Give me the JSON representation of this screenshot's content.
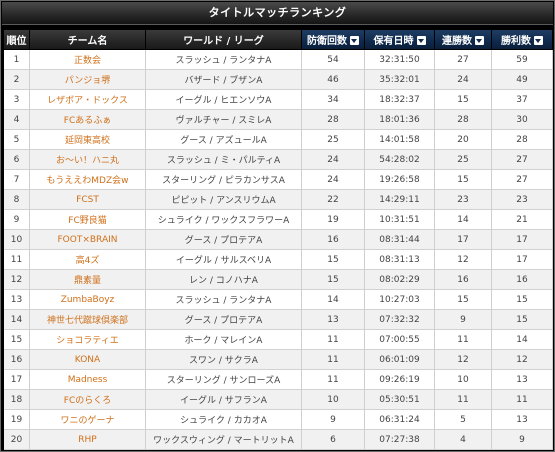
{
  "title": "タイトルマッチランキング",
  "headers": {
    "rank": "順位",
    "team": "チーム名",
    "world": "ワールド / リーグ",
    "defenses": "防衛回数",
    "held": "保有日時",
    "streak": "連勝数",
    "wins": "勝利数"
  },
  "rows": [
    {
      "rank": "1",
      "team": "正数会",
      "world": "スラッシュ / ランタナA",
      "defenses": "54",
      "held": "32:31:50",
      "streak": "27",
      "wins": "59"
    },
    {
      "rank": "2",
      "team": "パンジョ堺",
      "world": "バザード / ブザンA",
      "defenses": "46",
      "held": "35:32:01",
      "streak": "24",
      "wins": "49"
    },
    {
      "rank": "3",
      "team": "レザボア・ドックス",
      "world": "イーグル / ヒエンソウA",
      "defenses": "34",
      "held": "18:32:37",
      "streak": "15",
      "wins": "37"
    },
    {
      "rank": "4",
      "team": "FCあるふぁ",
      "world": "ヴァルチャー / スミレA",
      "defenses": "28",
      "held": "18:01:36",
      "streak": "28",
      "wins": "30"
    },
    {
      "rank": "5",
      "team": "延岡東高校",
      "world": "グース / アズュールA",
      "defenses": "25",
      "held": "14:01:58",
      "streak": "20",
      "wins": "28"
    },
    {
      "rank": "6",
      "team": "お〜い！ハニ丸",
      "world": "スラッシュ / ミ・パルティA",
      "defenses": "24",
      "held": "54:28:02",
      "streak": "25",
      "wins": "27"
    },
    {
      "rank": "7",
      "team": "もうええわMDZ会w",
      "world": "スターリング / ピラカンサスA",
      "defenses": "24",
      "held": "19:26:58",
      "streak": "15",
      "wins": "27"
    },
    {
      "rank": "8",
      "team": "FCST",
      "world": "ピピット / アンスリウムA",
      "defenses": "22",
      "held": "14:29:11",
      "streak": "23",
      "wins": "23"
    },
    {
      "rank": "9",
      "team": "FC野良猫",
      "world": "シュライク / ワックスフラワーA",
      "defenses": "19",
      "held": "10:31:51",
      "streak": "14",
      "wins": "21"
    },
    {
      "rank": "10",
      "team": "FOOT×BRAIN",
      "world": "グース / プロテアA",
      "defenses": "16",
      "held": "08:31:44",
      "streak": "17",
      "wins": "17"
    },
    {
      "rank": "11",
      "team": "高4ズ",
      "world": "イーグル / サルスベリA",
      "defenses": "15",
      "held": "08:31:13",
      "streak": "12",
      "wins": "17"
    },
    {
      "rank": "12",
      "team": "鼎素量",
      "world": "レン / コノハナA",
      "defenses": "15",
      "held": "08:02:29",
      "streak": "16",
      "wins": "16"
    },
    {
      "rank": "13",
      "team": "ZumbaBoyz",
      "world": "スラッシュ / ランタナA",
      "defenses": "14",
      "held": "10:27:03",
      "streak": "15",
      "wins": "15"
    },
    {
      "rank": "14",
      "team": "神世七代蹴球倶楽部",
      "world": "グース / プロテアA",
      "defenses": "13",
      "held": "07:32:32",
      "streak": "9",
      "wins": "15"
    },
    {
      "rank": "15",
      "team": "ショコラティエ",
      "world": "ホーク / マレインA",
      "defenses": "11",
      "held": "07:00:55",
      "streak": "11",
      "wins": "14"
    },
    {
      "rank": "16",
      "team": "KONA",
      "world": "スワン / サクラA",
      "defenses": "11",
      "held": "06:01:09",
      "streak": "12",
      "wins": "12"
    },
    {
      "rank": "17",
      "team": "Madness",
      "world": "スターリング / サンローズA",
      "defenses": "11",
      "held": "09:26:19",
      "streak": "10",
      "wins": "13"
    },
    {
      "rank": "18",
      "team": "FCのらくろ",
      "world": "イーグル / サフランA",
      "defenses": "10",
      "held": "05:30:51",
      "streak": "11",
      "wins": "11"
    },
    {
      "rank": "19",
      "team": "ワニのゲーナ",
      "world": "シュライク / カカオA",
      "defenses": "9",
      "held": "06:31:24",
      "streak": "5",
      "wins": "13"
    },
    {
      "rank": "20",
      "team": "RHP",
      "world": "ワックスウィング / マートリットA",
      "defenses": "6",
      "held": "07:27:38",
      "streak": "4",
      "wins": "9"
    }
  ]
}
